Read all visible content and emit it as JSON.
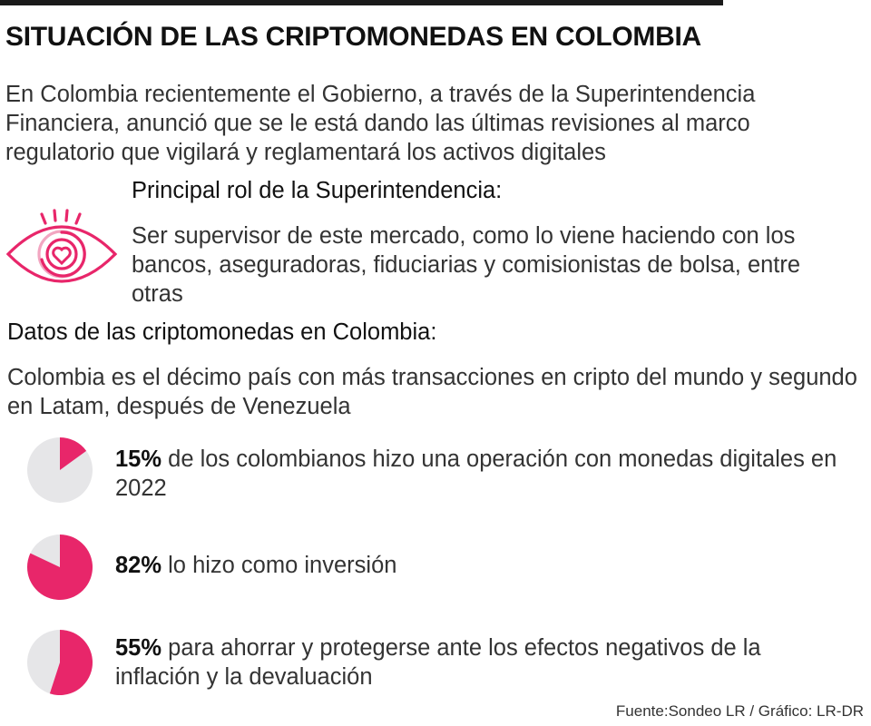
{
  "title": "SITUACIÓN DE LAS CRIPTOMONEDAS EN COLOMBIA",
  "intro": "En Colombia recientemente el Gobierno, a través de la Superintendencia Financiera, anunció que se le está dando las últimas revisiones al marco regulatorio que vigilará y reglamentará los activos digitales",
  "role": {
    "heading": "Principal rol de la Superintendencia:",
    "text": "Ser supervisor de este mercado, como lo viene haciendo con los bancos, aseguradoras, fiduciarias y comisionistas de bolsa, entre otras",
    "icon": "eye-heart-icon"
  },
  "data_section": {
    "heading": "Datos de las criptomonedas en Colombia:",
    "intro": "Colombia es el décimo país con más transacciones en cripto del mundo y segundo en Latam, después de Venezuela"
  },
  "colors": {
    "accent": "#e8266a",
    "remainder": "#e6e6e8",
    "text": "#333333"
  },
  "chart_data": [
    {
      "type": "pie",
      "values": [
        15,
        85
      ],
      "label": "15%",
      "description": "de los colombianos hizo una operación con monedas digitales en 2022"
    },
    {
      "type": "pie",
      "values": [
        82,
        18
      ],
      "label": "82%",
      "description": "lo hizo como inversión"
    },
    {
      "type": "pie",
      "values": [
        55,
        45
      ],
      "label": "55%",
      "description": "para ahorrar y protegerse ante los efectos negativos de la inflación y la devaluación"
    }
  ],
  "source": "Fuente:Sondeo LR / Gráfico: LR-DR"
}
